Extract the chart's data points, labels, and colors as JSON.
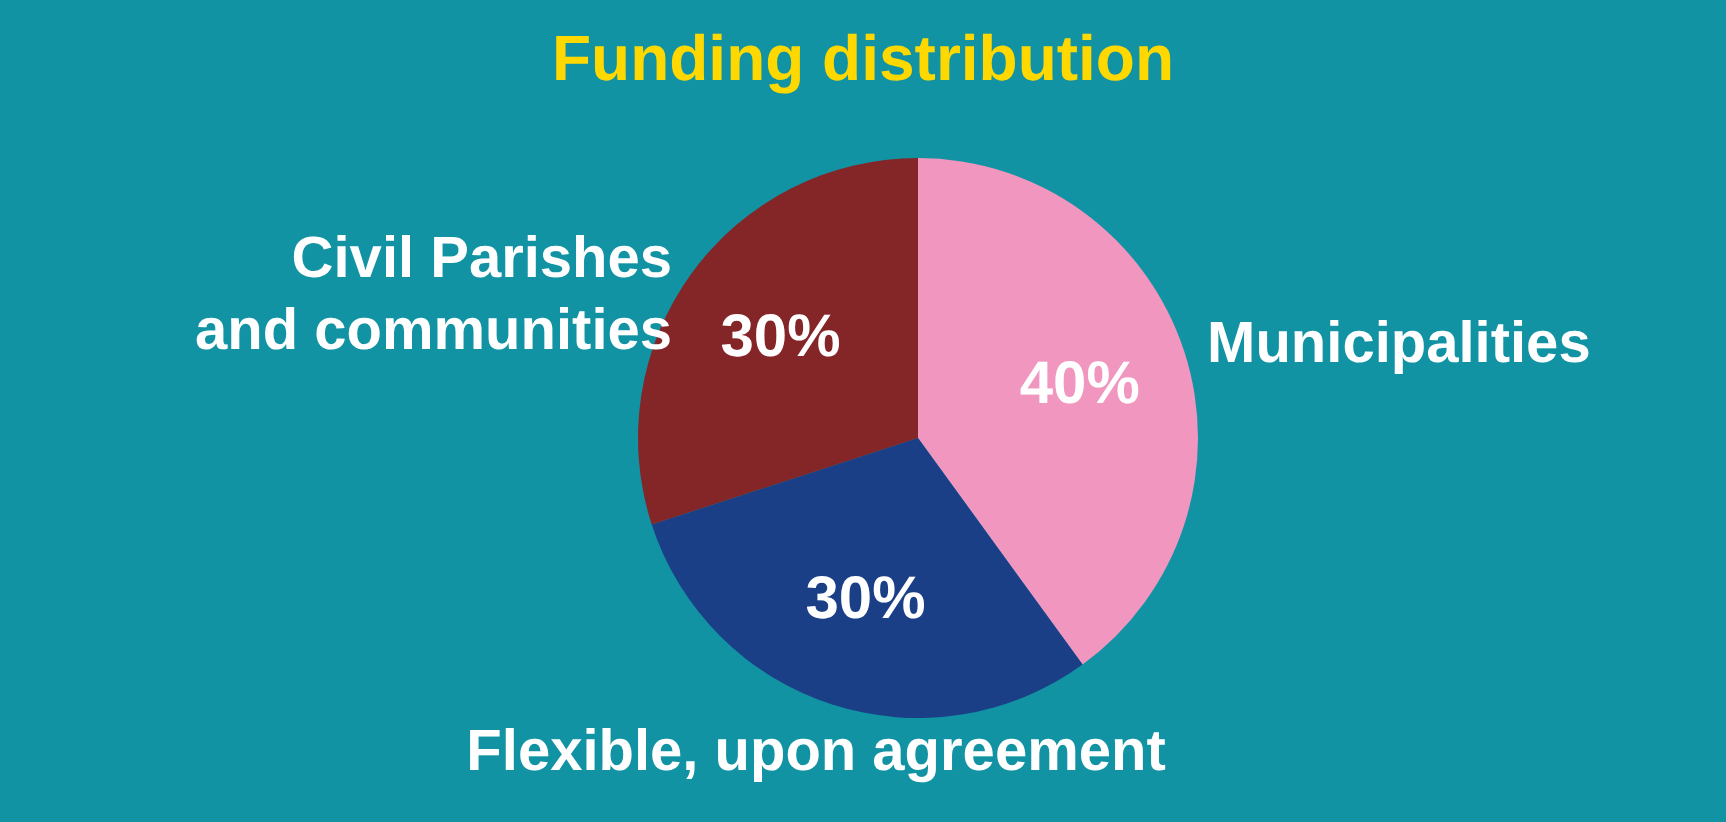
{
  "chart_data": {
    "type": "pie",
    "title": "Funding distribution",
    "categories": [
      "Municipalities",
      "Flexible, upon agreement",
      "Civil Parishes and communities"
    ],
    "values": [
      40,
      30,
      30
    ],
    "colors": [
      "#f096bf",
      "#1b3f87",
      "#842628"
    ],
    "value_labels": [
      "40%",
      "30%",
      "30%"
    ]
  }
}
